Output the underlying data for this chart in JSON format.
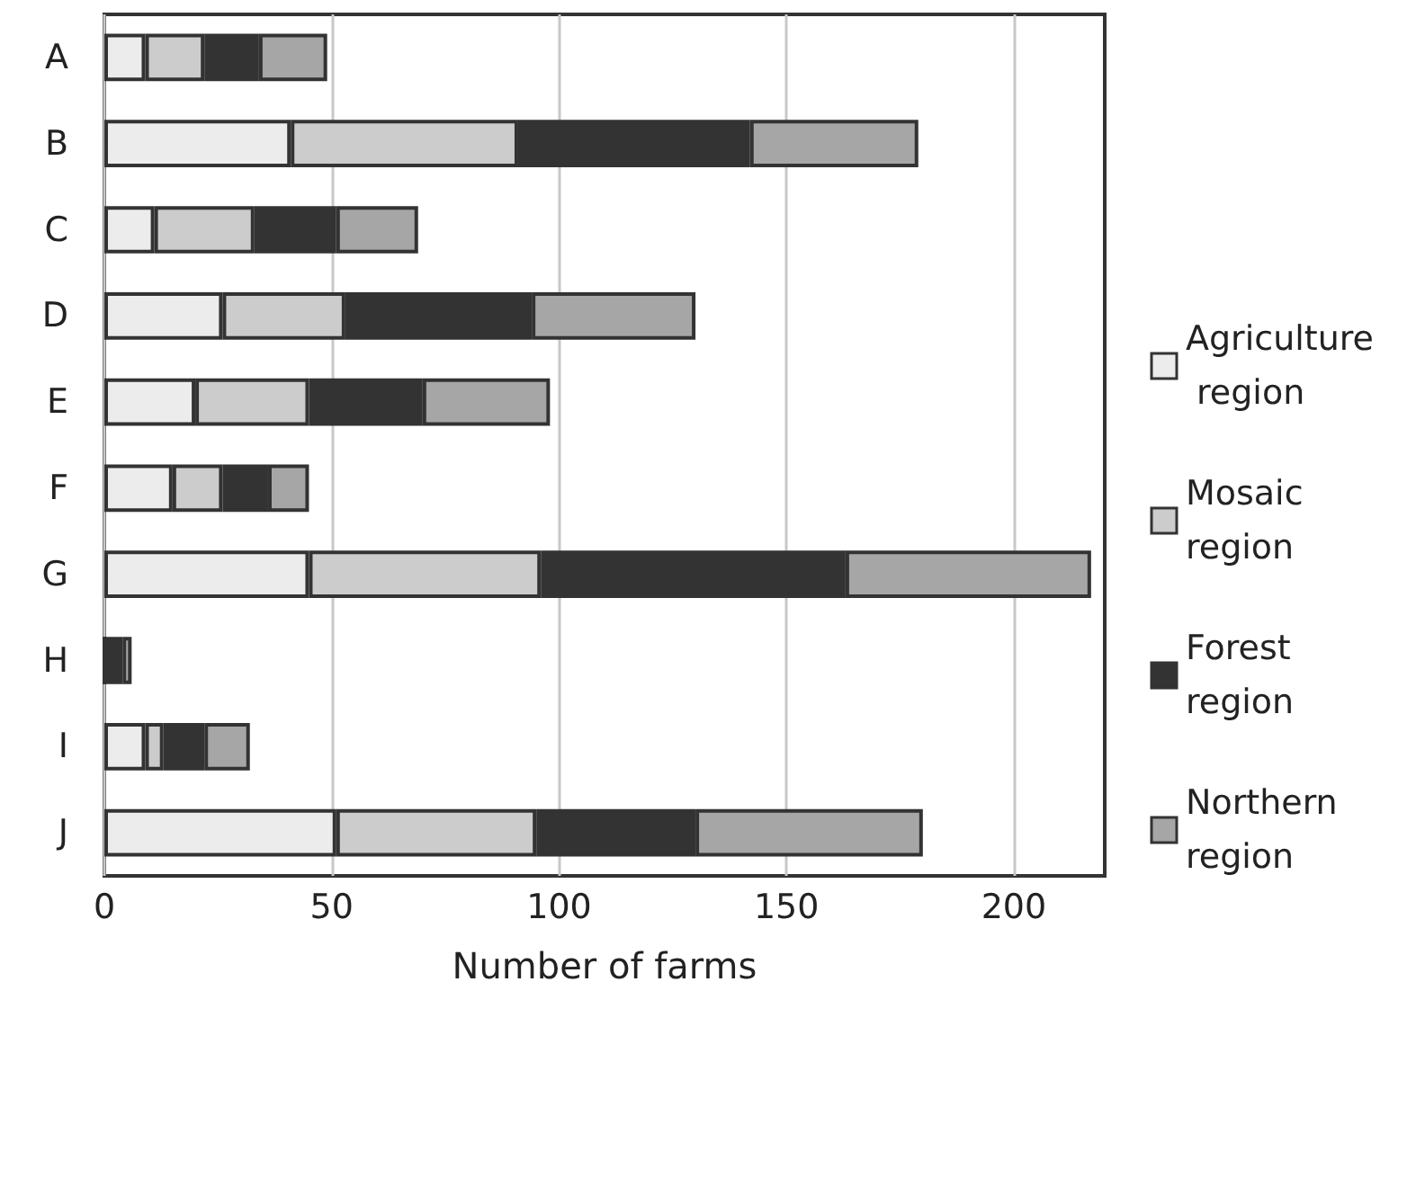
{
  "chart_data": {
    "type": "bar",
    "orientation": "horizontal",
    "stacked": true,
    "xlabel": "Number of farms",
    "categories": [
      "A",
      "B",
      "C",
      "D",
      "E",
      "F",
      "G",
      "H",
      "I",
      "J"
    ],
    "series": [
      {
        "name": "Agriculture region",
        "color": "#ececec",
        "values": [
          9,
          41,
          11,
          26,
          20,
          15,
          45,
          0,
          9,
          51
        ]
      },
      {
        "name": "Mosaic region",
        "color": "#cccccc",
        "values": [
          13,
          50,
          22,
          27,
          25,
          11,
          51,
          0,
          4,
          44
        ]
      },
      {
        "name": "Forest region",
        "color": "#333333",
        "values": [
          12,
          51,
          18,
          41,
          25,
          10,
          67,
          4,
          9,
          35
        ]
      },
      {
        "name": "Northern region",
        "color": "#a6a6a6",
        "values": [
          15,
          37,
          18,
          36,
          28,
          9,
          54,
          2,
          10,
          50
        ]
      }
    ],
    "xlim": [
      0,
      220
    ],
    "xticks": [
      0,
      50,
      100,
      150,
      200
    ],
    "grid": "x",
    "legend": "right"
  }
}
